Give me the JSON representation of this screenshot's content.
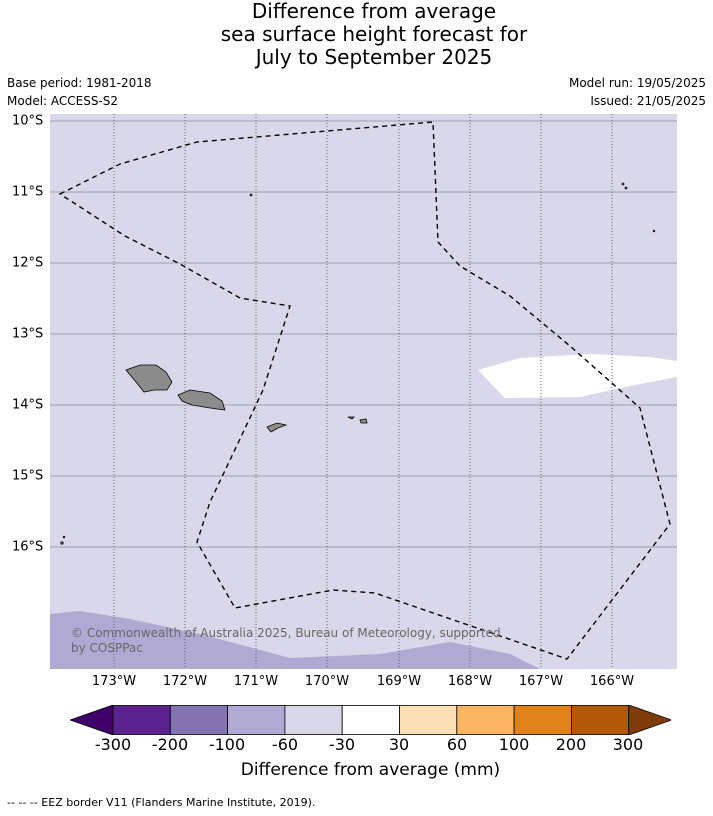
{
  "title": {
    "line1": "Difference from average",
    "line2": "sea surface height forecast for",
    "line3": "July to September 2025"
  },
  "meta": {
    "base_period": "Base period: 1981-2018",
    "model": "Model: ACCESS-S2",
    "model_run": "Model run: 19/05/2025",
    "issued": "Issued: 21/05/2025"
  },
  "map": {
    "latitude_labels": [
      "10°S",
      "11°S",
      "12°S",
      "13°S",
      "14°S",
      "15°S",
      "16°S"
    ],
    "longitude_labels": [
      "173°W",
      "172°W",
      "171°W",
      "170°W",
      "169°W",
      "168°W",
      "167°W",
      "166°W"
    ],
    "background_color": "#d8d8ea",
    "land_color": "#8c8c8c"
  },
  "copyright": "© Commonwealth of Australia 2025, Bureau of Meteorology, supported by COSPPac",
  "colorbar": {
    "ticks": [
      "-300",
      "-200",
      "-100",
      "-60",
      "-30",
      "30",
      "60",
      "100",
      "200",
      "300"
    ],
    "colors": [
      "#3f0069",
      "#5c2390",
      "#8373b0",
      "#b0a9d3",
      "#d8d8ea",
      "#ffffff",
      "#fee0b6",
      "#fbb460",
      "#e1811a",
      "#b35806",
      "#7f3b08"
    ],
    "label": "Difference from average (mm)"
  },
  "footnote": "--  --  -- EEZ border V11 (Flanders Marine Institute, 2019)."
}
